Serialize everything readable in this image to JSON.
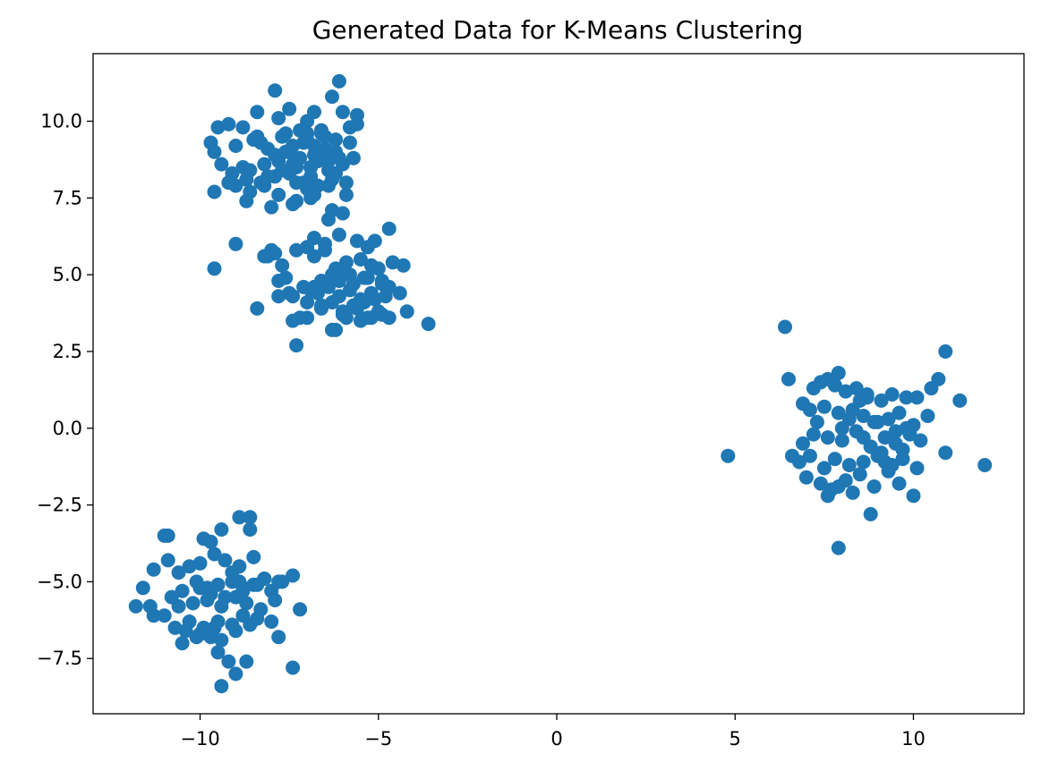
{
  "chart_data": {
    "type": "scatter",
    "title": "Generated Data for K-Means Clustering",
    "xlabel": "",
    "ylabel": "",
    "xlim": [
      -13.0,
      13.1
    ],
    "ylim": [
      -9.3,
      12.2
    ],
    "xticks": [
      -10,
      -5,
      0,
      5,
      10
    ],
    "xtick_labels": [
      "−10",
      "−5",
      "0",
      "5",
      "10"
    ],
    "yticks": [
      -7.5,
      -5.0,
      -2.5,
      0.0,
      2.5,
      5.0,
      7.5,
      10.0
    ],
    "ytick_labels": [
      "−7.5",
      "−5.0",
      "−2.5",
      "0.0",
      "2.5",
      "5.0",
      "7.5",
      "10.0"
    ],
    "grid": false,
    "marker_color": "#1f77b4",
    "series": [
      {
        "x": [
          -7.9,
          -6.1,
          -8.4,
          -7.5,
          -6.8,
          -6.3,
          -7.8,
          -7.0,
          -6.0,
          -5.6,
          -9.5,
          -9.2,
          -8.8,
          -8.4,
          -7.6,
          -7.2,
          -6.6,
          -5.8,
          -5.6,
          -9.7,
          -9.6,
          -9.0,
          -8.5,
          -8.1,
          -7.4,
          -7.0,
          -6.5,
          -6.2,
          -5.8,
          -9.4,
          -9.1,
          -8.8,
          -8.6,
          -8.2,
          -7.8,
          -7.3,
          -6.9,
          -6.4,
          -6.0,
          -5.7,
          -9.0,
          -8.7,
          -8.3,
          -7.9,
          -7.5,
          -7.1,
          -6.7,
          -6.3,
          -5.9,
          -9.6,
          -9.2,
          -8.6,
          -8.2,
          -7.8,
          -7.3,
          -6.8,
          -6.4,
          -5.9,
          -8.7,
          -8.0,
          -7.4,
          -6.9,
          -6.3,
          -6.0,
          -7.6,
          -7.2,
          -6.8,
          -6.4,
          -7.0,
          -6.6,
          -7.3,
          -6.9,
          -6.2,
          -8.3,
          -7.7,
          -7.1,
          -6.5,
          -7.9,
          -7.4,
          -6.7,
          -6.1,
          -6.8,
          -7.5,
          -8.1,
          -7.0,
          -6.9,
          -7.3,
          -7.7,
          -6.5,
          -6.2
        ],
        "y": [
          11.0,
          11.3,
          10.3,
          10.4,
          10.3,
          10.8,
          10.1,
          10.0,
          10.3,
          10.2,
          9.8,
          9.9,
          9.8,
          9.5,
          9.6,
          9.7,
          9.6,
          9.8,
          9.9,
          9.3,
          9.0,
          9.2,
          9.4,
          9.1,
          9.2,
          9.4,
          9.1,
          9.0,
          9.3,
          8.6,
          8.3,
          8.5,
          8.4,
          8.6,
          8.7,
          8.8,
          8.5,
          8.4,
          8.6,
          8.8,
          7.9,
          8.1,
          8.0,
          8.2,
          8.3,
          8.0,
          7.9,
          8.1,
          8.0,
          7.7,
          8.0,
          7.7,
          7.9,
          7.6,
          7.4,
          7.6,
          7.9,
          7.6,
          7.4,
          7.2,
          7.3,
          7.5,
          7.1,
          7.0,
          9.0,
          8.8,
          8.9,
          8.7,
          9.6,
          9.7,
          8.5,
          8.2,
          8.3,
          9.3,
          9.5,
          9.3,
          8.9,
          8.9,
          8.6,
          8.7,
          8.8,
          9.2,
          9.0,
          8.2,
          7.8,
          8.5,
          8.0,
          8.4,
          9.5,
          9.4
        ]
      },
      {
        "x": [
          -9.6,
          -9.0,
          -8.0,
          -8.1,
          -7.9,
          -7.7,
          -7.3,
          -7.0,
          -6.8,
          -6.5,
          -6.1,
          -5.6,
          -5.3,
          -5.1,
          -4.7,
          -4.3,
          -7.6,
          -7.1,
          -6.6,
          -6.3,
          -6.0,
          -5.7,
          -5.4,
          -5.2,
          -4.9,
          -4.6,
          -8.2,
          -7.4,
          -7.0,
          -6.7,
          -6.4,
          -6.1,
          -5.8,
          -5.5,
          -5.2,
          -4.9,
          -4.4,
          -7.8,
          -7.2,
          -6.6,
          -6.3,
          -6.0,
          -5.6,
          -5.3,
          -5.0,
          -4.7,
          -8.4,
          -7.4,
          -7.0,
          -6.6,
          -6.2,
          -5.9,
          -5.5,
          -5.2,
          -4.9,
          -4.2,
          -3.6,
          -7.3,
          -6.3,
          -6.0,
          -5.7,
          -5.4,
          -5.1,
          -4.8,
          -6.8,
          -6.5,
          -5.8,
          -5.5,
          -5.0,
          -6.9,
          -6.6,
          -6.2,
          -5.9,
          -7.8,
          -7.5,
          -6.8,
          -6.1,
          -5.3,
          -4.7,
          -6.4
        ],
        "y": [
          5.2,
          6.0,
          5.8,
          5.6,
          5.7,
          5.3,
          5.8,
          5.9,
          6.2,
          6.0,
          6.3,
          6.1,
          5.9,
          6.1,
          6.5,
          5.3,
          4.9,
          4.6,
          4.8,
          5.0,
          5.1,
          4.7,
          4.9,
          5.3,
          4.8,
          5.4,
          5.6,
          4.3,
          4.1,
          4.4,
          4.6,
          4.3,
          4.5,
          4.2,
          4.4,
          4.7,
          4.4,
          4.3,
          3.6,
          3.9,
          4.1,
          3.7,
          3.9,
          3.6,
          3.8,
          3.6,
          3.9,
          3.5,
          3.6,
          4.0,
          3.2,
          3.6,
          3.5,
          3.6,
          3.7,
          3.8,
          3.4,
          2.7,
          3.2,
          3.8,
          4.0,
          4.1,
          4.2,
          4.3,
          5.6,
          5.8,
          5.0,
          5.5,
          5.2,
          4.5,
          4.7,
          5.2,
          5.4,
          4.8,
          4.4,
          4.6,
          4.8,
          4.9,
          4.6,
          6.8
        ]
      },
      {
        "x": [
          -11.0,
          -10.9,
          -9.9,
          -9.7,
          -9.4,
          -8.9,
          -8.6,
          -8.6,
          -11.8,
          -11.6,
          -11.3,
          -10.9,
          -10.6,
          -10.3,
          -10.0,
          -9.6,
          -9.3,
          -8.9,
          -8.5,
          -8.2,
          -7.8,
          -7.4,
          -11.3,
          -10.8,
          -10.5,
          -10.1,
          -9.8,
          -9.5,
          -9.1,
          -8.8,
          -8.4,
          -8.0,
          -7.7,
          -11.4,
          -11.0,
          -10.6,
          -10.2,
          -9.8,
          -9.4,
          -9.0,
          -8.7,
          -8.3,
          -7.9,
          -7.2,
          -10.7,
          -10.3,
          -9.9,
          -9.5,
          -9.1,
          -8.8,
          -8.4,
          -8.0,
          -7.8,
          -10.5,
          -10.1,
          -9.7,
          -9.4,
          -9.0,
          -8.6,
          -9.5,
          -9.2,
          -9.0,
          -8.7,
          -9.4,
          -7.4,
          -9.1,
          -8.8,
          -8.5,
          -8.2,
          -10.0,
          -9.7,
          -9.3,
          -8.9,
          -10.4,
          -10.0,
          -9.6
        ],
        "y": [
          -3.5,
          -3.5,
          -3.6,
          -3.7,
          -3.3,
          -2.9,
          -2.9,
          -3.3,
          -5.8,
          -5.2,
          -4.6,
          -4.3,
          -4.7,
          -4.5,
          -4.4,
          -4.1,
          -4.3,
          -4.5,
          -4.2,
          -4.9,
          -5.0,
          -4.8,
          -6.1,
          -5.5,
          -5.3,
          -5.0,
          -5.2,
          -5.1,
          -5.0,
          -5.3,
          -5.1,
          -5.3,
          -5.0,
          -5.8,
          -6.1,
          -5.8,
          -5.7,
          -5.6,
          -5.8,
          -5.5,
          -5.7,
          -5.9,
          -5.6,
          -5.9,
          -6.5,
          -6.3,
          -6.5,
          -6.3,
          -6.4,
          -6.1,
          -6.2,
          -6.3,
          -6.8,
          -7.0,
          -6.8,
          -6.8,
          -6.9,
          -6.6,
          -6.4,
          -7.3,
          -7.6,
          -8.0,
          -7.6,
          -8.4,
          -7.8,
          -4.7,
          -5.2,
          -5.1,
          -4.9,
          -5.2,
          -5.4,
          -5.5,
          -5.0,
          -6.6,
          -6.7,
          -6.5
        ]
      },
      {
        "x": [
          6.4,
          10.9,
          6.5,
          11.3,
          4.8,
          12.0,
          7.9,
          8.7,
          7.9,
          7.2,
          7.4,
          7.6,
          7.8,
          8.1,
          8.4,
          8.7,
          9.1,
          9.4,
          9.8,
          10.1,
          10.5,
          10.7,
          6.9,
          7.1,
          7.5,
          7.9,
          8.3,
          8.6,
          8.9,
          9.3,
          9.6,
          10.0,
          10.4,
          6.6,
          6.9,
          7.2,
          7.6,
          8.0,
          8.4,
          8.8,
          9.2,
          9.5,
          9.9,
          10.2,
          10.9,
          6.8,
          7.1,
          7.5,
          7.8,
          8.2,
          8.6,
          9.0,
          9.4,
          9.7,
          10.1,
          7.0,
          7.4,
          7.7,
          8.1,
          8.5,
          8.9,
          9.3,
          9.6,
          10.0,
          7.6,
          7.9,
          8.3,
          8.8,
          9.2,
          9.7,
          8.5,
          9.0,
          9.5,
          7.3,
          8.0,
          8.6,
          9.1,
          9.8,
          8.2,
          8.8
        ],
        "y": [
          3.3,
          2.5,
          1.6,
          0.9,
          -0.9,
          -1.2,
          1.8,
          1.1,
          -3.9,
          1.3,
          1.5,
          1.6,
          1.4,
          1.2,
          1.3,
          1.0,
          0.9,
          1.1,
          1.0,
          1.0,
          1.3,
          1.6,
          0.8,
          0.6,
          0.7,
          0.5,
          0.6,
          0.4,
          0.2,
          0.3,
          0.5,
          0.1,
          0.4,
          -0.9,
          -0.5,
          -0.2,
          -0.3,
          -0.4,
          -0.1,
          -0.6,
          -0.3,
          -0.5,
          -0.2,
          -0.4,
          -0.8,
          -1.1,
          -0.9,
          -1.3,
          -1.0,
          -1.2,
          -1.1,
          -0.9,
          -1.2,
          -1.0,
          -1.3,
          -1.6,
          -1.8,
          -2.0,
          -1.7,
          -1.5,
          -1.9,
          -1.4,
          -1.8,
          -2.2,
          -2.2,
          -1.9,
          -2.1,
          -2.8,
          -1.1,
          -0.7,
          0.9,
          0.2,
          -0.1,
          0.2,
          0.0,
          -0.3,
          -0.8,
          0.0,
          0.3,
          -0.6
        ]
      }
    ]
  }
}
